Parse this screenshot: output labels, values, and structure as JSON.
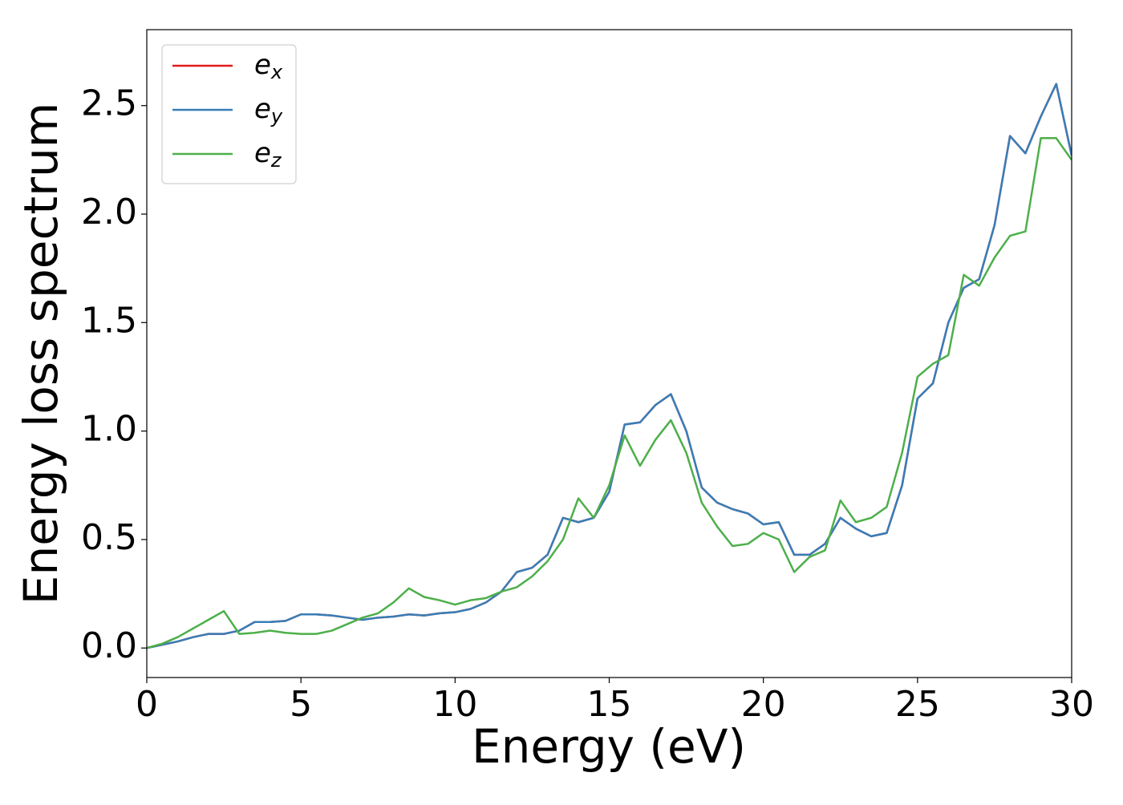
{
  "chart_data": {
    "type": "line",
    "xlabel": "Energy (eV)",
    "ylabel": "Energy loss spectrum",
    "x": [
      0,
      0.5,
      1,
      1.5,
      2,
      2.5,
      3,
      3.5,
      4,
      4.5,
      5,
      5.5,
      6,
      6.5,
      7,
      7.5,
      8,
      8.5,
      9,
      9.5,
      10,
      10.5,
      11,
      11.5,
      12,
      12.5,
      13,
      13.5,
      14,
      14.5,
      15,
      15.5,
      16,
      16.5,
      17,
      17.5,
      18,
      18.5,
      19,
      19.5,
      20,
      20.5,
      21,
      21.5,
      22,
      22.5,
      23,
      23.5,
      24,
      24.5,
      25,
      25.5,
      26,
      26.5,
      27,
      27.5,
      28,
      28.5,
      29,
      29.5,
      30
    ],
    "series": [
      {
        "name": "ex",
        "color": "#e41a1c",
        "values": [
          0,
          0.015,
          0.03,
          0.05,
          0.065,
          0.065,
          0.08,
          0.12,
          0.12,
          0.125,
          0.155,
          0.155,
          0.15,
          0.14,
          0.13,
          0.14,
          0.145,
          0.155,
          0.15,
          0.16,
          0.165,
          0.18,
          0.21,
          0.26,
          0.35,
          0.37,
          0.43,
          0.6,
          0.58,
          0.6,
          0.72,
          1.03,
          1.04,
          1.12,
          1.17,
          1.0,
          0.74,
          0.67,
          0.64,
          0.62,
          0.57,
          0.58,
          0.43,
          0.43,
          0.48,
          0.6,
          0.55,
          0.515,
          0.53,
          0.75,
          1.15,
          1.22,
          1.5,
          1.66,
          1.7,
          1.95,
          2.36,
          2.28,
          2.45,
          2.6,
          2.27
        ]
      },
      {
        "name": "ey",
        "color": "#377eb8",
        "values": [
          0,
          0.015,
          0.03,
          0.05,
          0.065,
          0.065,
          0.08,
          0.12,
          0.12,
          0.125,
          0.155,
          0.155,
          0.15,
          0.14,
          0.13,
          0.14,
          0.145,
          0.155,
          0.15,
          0.16,
          0.165,
          0.18,
          0.21,
          0.26,
          0.35,
          0.37,
          0.43,
          0.6,
          0.58,
          0.6,
          0.72,
          1.03,
          1.04,
          1.12,
          1.17,
          1.0,
          0.74,
          0.67,
          0.64,
          0.62,
          0.57,
          0.58,
          0.43,
          0.43,
          0.48,
          0.6,
          0.55,
          0.515,
          0.53,
          0.75,
          1.15,
          1.22,
          1.5,
          1.66,
          1.7,
          1.95,
          2.36,
          2.28,
          2.45,
          2.6,
          2.27
        ]
      },
      {
        "name": "ez",
        "color": "#4daf4a",
        "values": [
          0,
          0.02,
          0.05,
          0.09,
          0.13,
          0.17,
          0.065,
          0.07,
          0.08,
          0.07,
          0.065,
          0.065,
          0.08,
          0.11,
          0.14,
          0.16,
          0.21,
          0.275,
          0.235,
          0.22,
          0.2,
          0.22,
          0.23,
          0.26,
          0.28,
          0.33,
          0.4,
          0.5,
          0.69,
          0.6,
          0.75,
          0.98,
          0.84,
          0.96,
          1.05,
          0.9,
          0.67,
          0.56,
          0.47,
          0.48,
          0.53,
          0.5,
          0.35,
          0.42,
          0.45,
          0.68,
          0.58,
          0.6,
          0.65,
          0.9,
          1.25,
          1.31,
          1.35,
          1.72,
          1.67,
          1.8,
          1.9,
          1.92,
          2.35,
          2.35,
          2.25
        ]
      }
    ],
    "xlim": [
      0,
      30
    ],
    "ylim": [
      -0.136,
      2.85
    ],
    "xticks": [
      0,
      5,
      10,
      15,
      20,
      25,
      30
    ],
    "yticks": [
      {
        "value": 0,
        "label": "0.0"
      },
      0.5,
      {
        "value": 1,
        "label": "1.0"
      },
      1.5,
      {
        "value": 2,
        "label": "2.0"
      },
      2.5
    ],
    "legend": "upper left",
    "grid": false
  }
}
